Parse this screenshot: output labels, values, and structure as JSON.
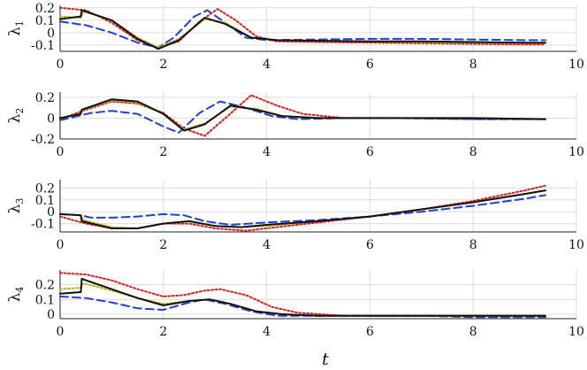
{
  "chart_data": [
    {
      "type": "line",
      "ylabel": "λ",
      "ylabel_sub": "1",
      "xlim": [
        0,
        10
      ],
      "ylim": [
        -0.15,
        0.22
      ],
      "xticks": [
        "0",
        "2",
        "4",
        "6",
        "8",
        "10"
      ],
      "yticks": [
        {
          "v": 0.2,
          "label": "0.2"
        },
        {
          "v": 0.1,
          "label": "0.1"
        },
        {
          "v": 0,
          "label": "0"
        },
        {
          "v": -0.1,
          "label": "-0.1"
        }
      ],
      "grid": true,
      "series": [
        {
          "color": "#e41a1c",
          "style": "dotted",
          "x": [
            0,
            0.5,
            1,
            1.5,
            1.9,
            2.3,
            2.7,
            3.05,
            3.4,
            3.8,
            4.2,
            5,
            6,
            7,
            8,
            9,
            9.4
          ],
          "y": [
            0.2,
            0.18,
            0.08,
            -0.06,
            -0.12,
            -0.07,
            0.09,
            0.19,
            0.1,
            -0.03,
            -0.07,
            -0.075,
            -0.08,
            -0.085,
            -0.09,
            -0.095,
            -0.095
          ]
        },
        {
          "color": "#1f3fd8",
          "style": "dashed",
          "x": [
            0,
            0.5,
            1,
            1.5,
            1.9,
            2.2,
            2.6,
            2.85,
            3.2,
            3.6,
            4,
            5,
            6,
            7,
            8,
            9,
            9.4
          ],
          "y": [
            0.09,
            0.06,
            0.0,
            -0.08,
            -0.12,
            -0.04,
            0.13,
            0.18,
            0.08,
            -0.04,
            -0.06,
            -0.055,
            -0.05,
            -0.05,
            -0.055,
            -0.06,
            -0.06
          ]
        },
        {
          "color": "#b5b51e",
          "style": "dotted",
          "x": [
            0,
            0.4,
            0.45,
            1,
            1.5,
            1.9,
            2.3,
            2.8,
            3.2,
            3.7,
            4.2,
            5,
            6,
            7,
            8,
            9,
            9.4
          ],
          "y": [
            0.13,
            0.12,
            0.17,
            0.1,
            -0.04,
            -0.12,
            -0.05,
            0.11,
            0.08,
            -0.04,
            -0.06,
            -0.065,
            -0.07,
            -0.075,
            -0.08,
            -0.085,
            -0.085
          ]
        },
        {
          "color": "#111111",
          "style": "solid",
          "x": [
            0,
            0.4,
            0.42,
            1,
            1.5,
            1.9,
            2.3,
            2.8,
            3.2,
            3.7,
            4.2,
            5,
            6,
            7,
            8,
            9,
            9.4
          ],
          "y": [
            0.11,
            0.13,
            0.18,
            0.1,
            -0.05,
            -0.13,
            -0.06,
            0.12,
            0.07,
            -0.04,
            -0.06,
            -0.065,
            -0.07,
            -0.07,
            -0.075,
            -0.08,
            -0.08
          ]
        }
      ]
    },
    {
      "type": "line",
      "ylabel": "λ",
      "ylabel_sub": "2",
      "xlim": [
        0,
        10
      ],
      "ylim": [
        -0.2,
        0.25
      ],
      "xticks": [
        "0",
        "2",
        "4",
        "6",
        "8",
        "10"
      ],
      "yticks": [
        {
          "v": 0.2,
          "label": "0.2"
        },
        {
          "v": 0,
          "label": "0"
        },
        {
          "v": -0.2,
          "label": "-0.2"
        }
      ],
      "grid": true,
      "series": [
        {
          "color": "#e41a1c",
          "style": "dotted",
          "x": [
            0,
            0.5,
            1,
            1.5,
            2,
            2.4,
            2.8,
            3.2,
            3.7,
            4.2,
            4.7,
            5.5,
            6.5,
            8,
            9.4
          ],
          "y": [
            -0.01,
            0.08,
            0.16,
            0.14,
            0.05,
            -0.1,
            -0.17,
            0.0,
            0.22,
            0.12,
            0.04,
            0.0,
            0.0,
            -0.01,
            -0.01
          ]
        },
        {
          "color": "#1f3fd8",
          "style": "dashed",
          "x": [
            0,
            0.6,
            1,
            1.5,
            2,
            2.3,
            2.7,
            3.1,
            3.6,
            4.1,
            4.6,
            5.5,
            6.5,
            8,
            9.4
          ],
          "y": [
            -0.02,
            0.05,
            0.07,
            0.04,
            -0.08,
            -0.14,
            0.05,
            0.16,
            0.1,
            0.02,
            -0.01,
            0.0,
            0.0,
            -0.01,
            -0.01
          ]
        },
        {
          "color": "#b5b51e",
          "style": "dotted",
          "x": [
            0,
            0.4,
            0.45,
            1,
            1.5,
            2,
            2.4,
            2.8,
            3.3,
            3.8,
            4.3,
            5,
            6,
            8,
            9.4
          ],
          "y": [
            0.0,
            0.04,
            0.08,
            0.17,
            0.15,
            0.04,
            -0.11,
            -0.05,
            0.11,
            0.09,
            0.02,
            0.0,
            0.0,
            0.0,
            -0.01
          ]
        },
        {
          "color": "#111111",
          "style": "solid",
          "x": [
            0,
            0.4,
            0.42,
            1,
            1.5,
            2,
            2.4,
            2.8,
            3.3,
            3.8,
            4.3,
            5,
            6,
            8,
            9.4
          ],
          "y": [
            0.0,
            0.04,
            0.08,
            0.18,
            0.16,
            0.04,
            -0.12,
            -0.06,
            0.12,
            0.08,
            0.02,
            0.0,
            0.0,
            0.0,
            -0.01
          ]
        }
      ]
    },
    {
      "type": "line",
      "ylabel": "λ",
      "ylabel_sub": "3",
      "xlim": [
        0,
        10
      ],
      "ylim": [
        -0.17,
        0.27
      ],
      "xticks": [
        "0",
        "2",
        "4",
        "6",
        "8",
        "10"
      ],
      "yticks": [
        {
          "v": 0.2,
          "label": "0.2"
        },
        {
          "v": 0.1,
          "label": "0.1"
        },
        {
          "v": 0,
          "label": "0"
        },
        {
          "v": -0.1,
          "label": "-0.1"
        }
      ],
      "grid": true,
      "series": [
        {
          "color": "#e41a1c",
          "style": "dotted",
          "x": [
            0,
            0.5,
            1,
            1.5,
            2,
            2.5,
            3,
            3.6,
            4.2,
            5,
            6,
            7,
            8,
            9,
            9.4
          ],
          "y": [
            -0.04,
            -0.1,
            -0.14,
            -0.14,
            -0.1,
            -0.1,
            -0.14,
            -0.16,
            -0.13,
            -0.09,
            -0.04,
            0.02,
            0.09,
            0.18,
            0.22
          ]
        },
        {
          "color": "#1f3fd8",
          "style": "dashed",
          "x": [
            0,
            0.4,
            0.6,
            1,
            1.5,
            2,
            2.4,
            2.8,
            3.3,
            4,
            5,
            6,
            7,
            8,
            9,
            9.4
          ],
          "y": [
            -0.02,
            -0.03,
            -0.05,
            -0.05,
            -0.04,
            -0.02,
            -0.03,
            -0.08,
            -0.11,
            -0.09,
            -0.07,
            -0.04,
            0.0,
            0.05,
            0.11,
            0.14
          ]
        },
        {
          "color": "#b5b51e",
          "style": "dotted",
          "x": [
            0,
            0.4,
            0.45,
            1,
            1.5,
            2,
            2.5,
            3,
            3.5,
            4,
            5,
            6,
            7,
            8,
            9,
            9.4
          ],
          "y": [
            -0.02,
            -0.03,
            -0.07,
            -0.13,
            -0.14,
            -0.1,
            -0.08,
            -0.12,
            -0.13,
            -0.12,
            -0.08,
            -0.04,
            0.02,
            0.08,
            0.15,
            0.18
          ]
        },
        {
          "color": "#111111",
          "style": "solid",
          "x": [
            0,
            0.4,
            0.42,
            1,
            1.5,
            2,
            2.5,
            3,
            3.5,
            4,
            5,
            6,
            7,
            8,
            9,
            9.4
          ],
          "y": [
            -0.02,
            -0.03,
            -0.08,
            -0.14,
            -0.14,
            -0.1,
            -0.08,
            -0.12,
            -0.13,
            -0.11,
            -0.08,
            -0.04,
            0.02,
            0.08,
            0.15,
            0.18
          ]
        }
      ]
    },
    {
      "type": "line",
      "ylabel": "λ",
      "ylabel_sub": "4",
      "xlim": [
        0,
        10
      ],
      "ylim": [
        -0.03,
        0.3
      ],
      "xticks": [
        "0",
        "2",
        "4",
        "6",
        "8",
        "10"
      ],
      "yticks": [
        {
          "v": 0.2,
          "label": "0.2"
        },
        {
          "v": 0.1,
          "label": "0.1"
        },
        {
          "v": 0,
          "label": "0"
        }
      ],
      "grid": true,
      "series": [
        {
          "color": "#e41a1c",
          "style": "dotted",
          "x": [
            0,
            0.5,
            1,
            1.5,
            2,
            2.4,
            2.8,
            3.1,
            3.6,
            4.1,
            4.6,
            5.5,
            6.5,
            8,
            9.4
          ],
          "y": [
            0.28,
            0.27,
            0.23,
            0.17,
            0.12,
            0.13,
            0.16,
            0.17,
            0.13,
            0.05,
            0.01,
            -0.01,
            -0.01,
            -0.01,
            -0.01
          ]
        },
        {
          "color": "#1f3fd8",
          "style": "dashed",
          "x": [
            0,
            0.5,
            1,
            1.5,
            2,
            2.5,
            2.8,
            3.2,
            3.7,
            4.2,
            5,
            6,
            7,
            8,
            9.4
          ],
          "y": [
            0.12,
            0.11,
            0.08,
            0.04,
            0.03,
            0.08,
            0.1,
            0.07,
            0.02,
            -0.01,
            -0.01,
            -0.01,
            -0.01,
            -0.02,
            -0.02
          ]
        },
        {
          "color": "#b5b51e",
          "style": "dotted",
          "x": [
            0,
            0.4,
            0.45,
            1,
            1.5,
            2,
            2.5,
            2.9,
            3.3,
            3.8,
            4.3,
            5,
            6,
            8,
            9.4
          ],
          "y": [
            0.17,
            0.18,
            0.21,
            0.16,
            0.11,
            0.07,
            0.09,
            0.1,
            0.07,
            0.02,
            0.0,
            -0.01,
            -0.01,
            -0.01,
            -0.01
          ]
        },
        {
          "color": "#111111",
          "style": "solid",
          "x": [
            0,
            0.4,
            0.42,
            1,
            1.5,
            2,
            2.5,
            2.9,
            3.3,
            3.8,
            4.3,
            5,
            6,
            8,
            9.4
          ],
          "y": [
            0.14,
            0.15,
            0.24,
            0.17,
            0.11,
            0.06,
            0.09,
            0.1,
            0.07,
            0.02,
            0.0,
            -0.01,
            -0.01,
            -0.01,
            -0.01
          ]
        }
      ]
    }
  ],
  "xlabel": "t"
}
